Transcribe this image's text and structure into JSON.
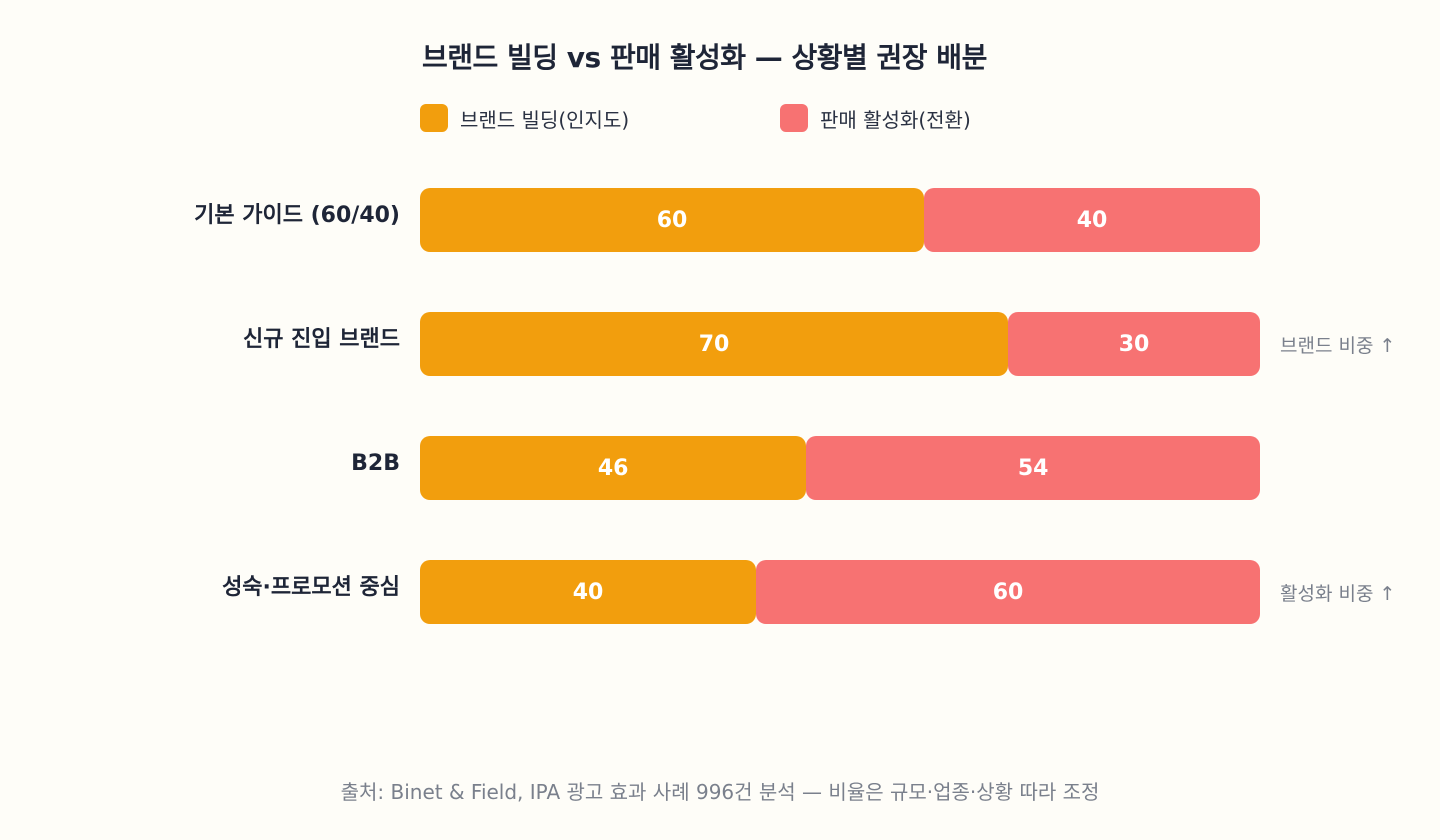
{
  "chart_data": {
    "type": "bar",
    "orientation": "horizontal",
    "stacked": true,
    "title": "브랜드 빌딩 vs 판매 활성화 — 상황별 권장 배분",
    "categories": [
      "기본 가이드 (60/40)",
      "신규 진입 브랜드",
      "B2B",
      "성숙·프로모션 중심"
    ],
    "series": [
      {
        "name": "브랜드 빌딩(인지도)",
        "color": "#F29E0D",
        "values": [
          60,
          70,
          46,
          40
        ]
      },
      {
        "name": "판매 활성화(전환)",
        "color": "#F77272",
        "values": [
          40,
          30,
          54,
          60
        ]
      }
    ],
    "annotations": [
      "",
      "브랜드 비중 ↑",
      "",
      "활성화 비중 ↑"
    ],
    "xlim": [
      0,
      100
    ],
    "grid": false,
    "legend_placement": "top-left",
    "source": "출처: Binet & Field, IPA 광고 효과 사례 996건 분석 — 비율은 규모·업종·상황 따라 조정"
  }
}
